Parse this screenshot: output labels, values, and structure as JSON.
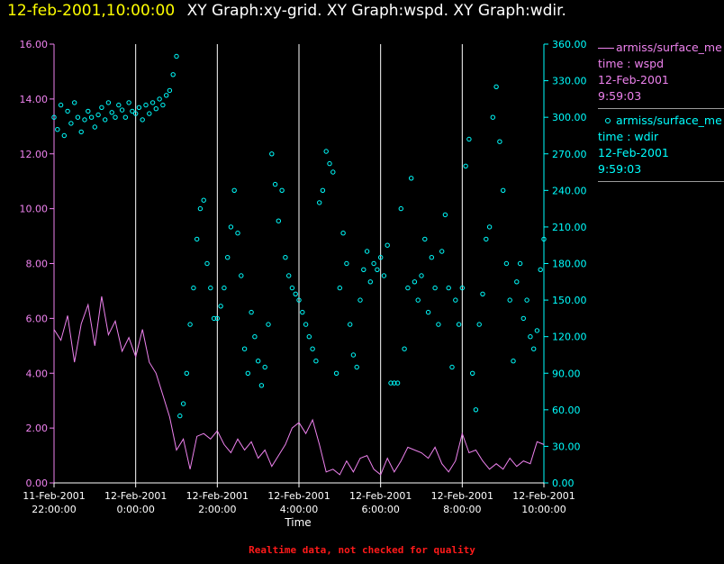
{
  "header": {
    "time": "12-feb-2001,10:00:00",
    "graphs": "XY Graph:xy-grid.  XY Graph:wspd.  XY Graph:wdir."
  },
  "legend": {
    "wspd": {
      "name": "armiss/surface_me",
      "var": "time : wspd",
      "date": "12-Feb-2001",
      "time": "9:59:03"
    },
    "wdir": {
      "name": "armiss/surface_me",
      "var": "time : wdir",
      "date": "12-Feb-2001",
      "time": "9:59:03"
    }
  },
  "footer": {
    "note": "Realtime data, not checked for quality"
  },
  "colors": {
    "wspd": "#ee82ee",
    "wdir": "#00ffff",
    "grid": "#ffffff",
    "title_time": "#ffff00"
  },
  "chart_data": {
    "type": "scatter",
    "xlabel": "Time",
    "xlim": [
      "2001-02-11T22:00",
      "2001-02-12T10:00"
    ],
    "x_ticks": [
      {
        "date": "11-Feb-2001",
        "time": "22:00:00"
      },
      {
        "date": "12-Feb-2001",
        "time": "0:00:00"
      },
      {
        "date": "12-Feb-2001",
        "time": "2:00:00"
      },
      {
        "date": "12-Feb-2001",
        "time": "4:00:00"
      },
      {
        "date": "12-Feb-2001",
        "time": "6:00:00"
      },
      {
        "date": "12-Feb-2001",
        "time": "8:00:00"
      },
      {
        "date": "12-Feb-2001",
        "time": "10:00:00"
      }
    ],
    "y_left": {
      "ylim": [
        0,
        16
      ],
      "ticks": [
        "0.00",
        "2.00",
        "4.00",
        "6.00",
        "8.00",
        "10.00",
        "12.00",
        "14.00",
        "16.00"
      ]
    },
    "y_right": {
      "ylim": [
        0,
        360
      ],
      "ticks": [
        "0.00",
        "30.00",
        "60.00",
        "90.00",
        "120.00",
        "150.00",
        "180.00",
        "210.00",
        "240.00",
        "270.00",
        "300.00",
        "330.00",
        "360.00"
      ]
    },
    "grid_x": true,
    "series": [
      {
        "name": "wspd",
        "kind": "line",
        "axis": "left",
        "points": [
          [
            "2001-02-11T22:00",
            5.6
          ],
          [
            "2001-02-11T22:10",
            5.2
          ],
          [
            "2001-02-11T22:20",
            6.1
          ],
          [
            "2001-02-11T22:30",
            4.4
          ],
          [
            "2001-02-11T22:40",
            5.8
          ],
          [
            "2001-02-11T22:50",
            6.5
          ],
          [
            "2001-02-11T23:00",
            5.0
          ],
          [
            "2001-02-11T23:10",
            6.8
          ],
          [
            "2001-02-11T23:20",
            5.4
          ],
          [
            "2001-02-11T23:30",
            5.9
          ],
          [
            "2001-02-11T23:40",
            4.8
          ],
          [
            "2001-02-11T23:50",
            5.3
          ],
          [
            "2001-02-12T00:00",
            4.6
          ],
          [
            "2001-02-12T00:10",
            5.6
          ],
          [
            "2001-02-12T00:20",
            4.4
          ],
          [
            "2001-02-12T00:30",
            4.0
          ],
          [
            "2001-02-12T00:40",
            3.2
          ],
          [
            "2001-02-12T00:50",
            2.4
          ],
          [
            "2001-02-12T01:00",
            1.2
          ],
          [
            "2001-02-12T01:10",
            1.6
          ],
          [
            "2001-02-12T01:20",
            0.5
          ],
          [
            "2001-02-12T01:30",
            1.7
          ],
          [
            "2001-02-12T01:40",
            1.8
          ],
          [
            "2001-02-12T01:50",
            1.6
          ],
          [
            "2001-02-12T02:00",
            1.9
          ],
          [
            "2001-02-12T02:10",
            1.4
          ],
          [
            "2001-02-12T02:20",
            1.1
          ],
          [
            "2001-02-12T02:30",
            1.6
          ],
          [
            "2001-02-12T02:40",
            1.2
          ],
          [
            "2001-02-12T02:50",
            1.5
          ],
          [
            "2001-02-12T03:00",
            0.9
          ],
          [
            "2001-02-12T03:10",
            1.2
          ],
          [
            "2001-02-12T03:20",
            0.6
          ],
          [
            "2001-02-12T03:30",
            1.0
          ],
          [
            "2001-02-12T03:40",
            1.4
          ],
          [
            "2001-02-12T03:50",
            2.0
          ],
          [
            "2001-02-12T04:00",
            2.2
          ],
          [
            "2001-02-12T04:10",
            1.8
          ],
          [
            "2001-02-12T04:20",
            2.3
          ],
          [
            "2001-02-12T04:30",
            1.4
          ],
          [
            "2001-02-12T04:40",
            0.4
          ],
          [
            "2001-02-12T04:50",
            0.5
          ],
          [
            "2001-02-12T05:00",
            0.3
          ],
          [
            "2001-02-12T05:10",
            0.8
          ],
          [
            "2001-02-12T05:20",
            0.4
          ],
          [
            "2001-02-12T05:30",
            0.9
          ],
          [
            "2001-02-12T05:40",
            1.0
          ],
          [
            "2001-02-12T05:50",
            0.5
          ],
          [
            "2001-02-12T06:00",
            0.3
          ],
          [
            "2001-02-12T06:10",
            0.9
          ],
          [
            "2001-02-12T06:20",
            0.4
          ],
          [
            "2001-02-12T06:30",
            0.8
          ],
          [
            "2001-02-12T06:40",
            1.3
          ],
          [
            "2001-02-12T06:50",
            1.2
          ],
          [
            "2001-02-12T07:00",
            1.1
          ],
          [
            "2001-02-12T07:10",
            0.9
          ],
          [
            "2001-02-12T07:20",
            1.3
          ],
          [
            "2001-02-12T07:30",
            0.7
          ],
          [
            "2001-02-12T07:40",
            0.4
          ],
          [
            "2001-02-12T07:50",
            0.8
          ],
          [
            "2001-02-12T08:00",
            1.8
          ],
          [
            "2001-02-12T08:10",
            1.1
          ],
          [
            "2001-02-12T08:20",
            1.2
          ],
          [
            "2001-02-12T08:30",
            0.8
          ],
          [
            "2001-02-12T08:40",
            0.5
          ],
          [
            "2001-02-12T08:50",
            0.7
          ],
          [
            "2001-02-12T09:00",
            0.5
          ],
          [
            "2001-02-12T09:10",
            0.9
          ],
          [
            "2001-02-12T09:20",
            0.6
          ],
          [
            "2001-02-12T09:30",
            0.8
          ],
          [
            "2001-02-12T09:40",
            0.7
          ],
          [
            "2001-02-12T09:50",
            1.5
          ],
          [
            "2001-02-12T10:00",
            1.4
          ]
        ]
      },
      {
        "name": "wdir",
        "kind": "scatter",
        "axis": "right",
        "points": [
          [
            "2001-02-11T22:00",
            300
          ],
          [
            "2001-02-11T22:05",
            290
          ],
          [
            "2001-02-11T22:10",
            310
          ],
          [
            "2001-02-11T22:15",
            285
          ],
          [
            "2001-02-11T22:20",
            305
          ],
          [
            "2001-02-11T22:25",
            295
          ],
          [
            "2001-02-11T22:30",
            312
          ],
          [
            "2001-02-11T22:35",
            300
          ],
          [
            "2001-02-11T22:40",
            288
          ],
          [
            "2001-02-11T22:45",
            298
          ],
          [
            "2001-02-11T22:50",
            305
          ],
          [
            "2001-02-11T22:55",
            300
          ],
          [
            "2001-02-11T23:00",
            292
          ],
          [
            "2001-02-11T23:05",
            302
          ],
          [
            "2001-02-11T23:10",
            308
          ],
          [
            "2001-02-11T23:15",
            298
          ],
          [
            "2001-02-11T23:20",
            312
          ],
          [
            "2001-02-11T23:25",
            304
          ],
          [
            "2001-02-11T23:30",
            300
          ],
          [
            "2001-02-11T23:35",
            310
          ],
          [
            "2001-02-11T23:40",
            306
          ],
          [
            "2001-02-11T23:45",
            300
          ],
          [
            "2001-02-11T23:50",
            312
          ],
          [
            "2001-02-11T23:55",
            305
          ],
          [
            "2001-02-12T00:00",
            303
          ],
          [
            "2001-02-12T00:05",
            308
          ],
          [
            "2001-02-12T00:10",
            298
          ],
          [
            "2001-02-12T00:15",
            310
          ],
          [
            "2001-02-12T00:20",
            303
          ],
          [
            "2001-02-12T00:25",
            312
          ],
          [
            "2001-02-12T00:30",
            307
          ],
          [
            "2001-02-12T00:35",
            315
          ],
          [
            "2001-02-12T00:40",
            310
          ],
          [
            "2001-02-12T00:45",
            318
          ],
          [
            "2001-02-12T00:50",
            322
          ],
          [
            "2001-02-12T00:55",
            335
          ],
          [
            "2001-02-12T01:00",
            350
          ],
          [
            "2001-02-12T01:05",
            55
          ],
          [
            "2001-02-12T01:10",
            65
          ],
          [
            "2001-02-12T01:15",
            90
          ],
          [
            "2001-02-12T01:20",
            130
          ],
          [
            "2001-02-12T01:25",
            160
          ],
          [
            "2001-02-12T01:30",
            200
          ],
          [
            "2001-02-12T01:35",
            225
          ],
          [
            "2001-02-12T01:40",
            232
          ],
          [
            "2001-02-12T01:45",
            180
          ],
          [
            "2001-02-12T01:50",
            160
          ],
          [
            "2001-02-12T01:55",
            135
          ],
          [
            "2001-02-12T02:00",
            135
          ],
          [
            "2001-02-12T02:05",
            145
          ],
          [
            "2001-02-12T02:10",
            160
          ],
          [
            "2001-02-12T02:15",
            185
          ],
          [
            "2001-02-12T02:20",
            210
          ],
          [
            "2001-02-12T02:25",
            240
          ],
          [
            "2001-02-12T02:30",
            205
          ],
          [
            "2001-02-12T02:35",
            170
          ],
          [
            "2001-02-12T02:40",
            110
          ],
          [
            "2001-02-12T02:45",
            90
          ],
          [
            "2001-02-12T02:50",
            140
          ],
          [
            "2001-02-12T02:55",
            120
          ],
          [
            "2001-02-12T03:00",
            100
          ],
          [
            "2001-02-12T03:05",
            80
          ],
          [
            "2001-02-12T03:10",
            95
          ],
          [
            "2001-02-12T03:15",
            130
          ],
          [
            "2001-02-12T03:20",
            270
          ],
          [
            "2001-02-12T03:25",
            245
          ],
          [
            "2001-02-12T03:30",
            215
          ],
          [
            "2001-02-12T03:35",
            240
          ],
          [
            "2001-02-12T03:40",
            185
          ],
          [
            "2001-02-12T03:45",
            170
          ],
          [
            "2001-02-12T03:50",
            160
          ],
          [
            "2001-02-12T03:55",
            155
          ],
          [
            "2001-02-12T04:00",
            150
          ],
          [
            "2001-02-12T04:05",
            140
          ],
          [
            "2001-02-12T04:10",
            130
          ],
          [
            "2001-02-12T04:15",
            120
          ],
          [
            "2001-02-12T04:20",
            110
          ],
          [
            "2001-02-12T04:25",
            100
          ],
          [
            "2001-02-12T04:30",
            230
          ],
          [
            "2001-02-12T04:35",
            240
          ],
          [
            "2001-02-12T04:40",
            272
          ],
          [
            "2001-02-12T04:45",
            262
          ],
          [
            "2001-02-12T04:50",
            255
          ],
          [
            "2001-02-12T04:55",
            90
          ],
          [
            "2001-02-12T05:00",
            160
          ],
          [
            "2001-02-12T05:05",
            205
          ],
          [
            "2001-02-12T05:10",
            180
          ],
          [
            "2001-02-12T05:15",
            130
          ],
          [
            "2001-02-12T05:20",
            105
          ],
          [
            "2001-02-12T05:25",
            95
          ],
          [
            "2001-02-12T05:30",
            150
          ],
          [
            "2001-02-12T05:35",
            175
          ],
          [
            "2001-02-12T05:40",
            190
          ],
          [
            "2001-02-12T05:45",
            165
          ],
          [
            "2001-02-12T05:50",
            180
          ],
          [
            "2001-02-12T05:55",
            175
          ],
          [
            "2001-02-12T06:00",
            185
          ],
          [
            "2001-02-12T06:05",
            170
          ],
          [
            "2001-02-12T06:10",
            195
          ],
          [
            "2001-02-12T06:15",
            82
          ],
          [
            "2001-02-12T06:20",
            82
          ],
          [
            "2001-02-12T06:25",
            82
          ],
          [
            "2001-02-12T06:30",
            225
          ],
          [
            "2001-02-12T06:35",
            110
          ],
          [
            "2001-02-12T06:40",
            160
          ],
          [
            "2001-02-12T06:45",
            250
          ],
          [
            "2001-02-12T06:50",
            165
          ],
          [
            "2001-02-12T06:55",
            150
          ],
          [
            "2001-02-12T07:00",
            170
          ],
          [
            "2001-02-12T07:05",
            200
          ],
          [
            "2001-02-12T07:10",
            140
          ],
          [
            "2001-02-12T07:15",
            185
          ],
          [
            "2001-02-12T07:20",
            160
          ],
          [
            "2001-02-12T07:25",
            130
          ],
          [
            "2001-02-12T07:30",
            190
          ],
          [
            "2001-02-12T07:35",
            220
          ],
          [
            "2001-02-12T07:40",
            160
          ],
          [
            "2001-02-12T07:45",
            95
          ],
          [
            "2001-02-12T07:50",
            150
          ],
          [
            "2001-02-12T07:55",
            130
          ],
          [
            "2001-02-12T08:00",
            160
          ],
          [
            "2001-02-12T08:05",
            260
          ],
          [
            "2001-02-12T08:10",
            282
          ],
          [
            "2001-02-12T08:15",
            90
          ],
          [
            "2001-02-12T08:20",
            60
          ],
          [
            "2001-02-12T08:25",
            130
          ],
          [
            "2001-02-12T08:30",
            155
          ],
          [
            "2001-02-12T08:35",
            200
          ],
          [
            "2001-02-12T08:40",
            210
          ],
          [
            "2001-02-12T08:45",
            300
          ],
          [
            "2001-02-12T08:50",
            325
          ],
          [
            "2001-02-12T08:55",
            280
          ],
          [
            "2001-02-12T09:00",
            240
          ],
          [
            "2001-02-12T09:05",
            180
          ],
          [
            "2001-02-12T09:10",
            150
          ],
          [
            "2001-02-12T09:15",
            100
          ],
          [
            "2001-02-12T09:20",
            165
          ],
          [
            "2001-02-12T09:25",
            180
          ],
          [
            "2001-02-12T09:30",
            135
          ],
          [
            "2001-02-12T09:35",
            150
          ],
          [
            "2001-02-12T09:40",
            120
          ],
          [
            "2001-02-12T09:45",
            110
          ],
          [
            "2001-02-12T09:50",
            125
          ],
          [
            "2001-02-12T09:55",
            175
          ],
          [
            "2001-02-12T10:00",
            200
          ]
        ]
      }
    ]
  }
}
